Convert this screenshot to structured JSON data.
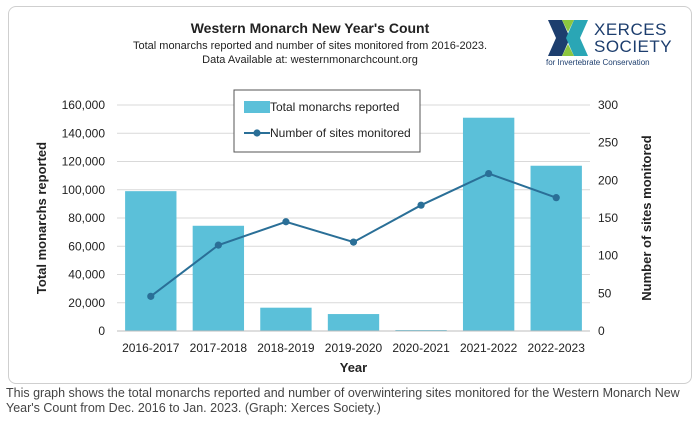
{
  "header": {
    "title": "Western Monarch New Year's Count",
    "subtitle_line1": "Total monarchs reported and number of sites monitored from 2016-2023.",
    "subtitle_line2": "Data Available at: westernmonarchcount.org"
  },
  "logo": {
    "word1": "XERCES",
    "word2": "SOCIETY",
    "tagline": "for Invertebrate Conservation",
    "colors": [
      "#1d3e6e",
      "#2aa6b5",
      "#8cc63f"
    ]
  },
  "caption": "This graph shows the total monarchs reported and number of overwintering sites monitored for the Western Monarch New Year's Count from Dec. 2016 to Jan. 2023. (Graph: Xerces Society.)",
  "chart_data": {
    "type": "bar",
    "title": "Western Monarch New Year's Count",
    "categories": [
      "2016-2017",
      "2017-2018",
      "2018-2019",
      "2019-2020",
      "2020-2021",
      "2021-2022",
      "2022-2023"
    ],
    "series": [
      {
        "name": "Total monarchs reported",
        "type": "bar",
        "axis": "left",
        "color": "#5bc0d9",
        "values": [
          99000,
          74500,
          16500,
          12000,
          700,
          151000,
          117000
        ]
      },
      {
        "name": "Number of sites monitored",
        "type": "line",
        "axis": "right",
        "color": "#2a6f97",
        "values": [
          46,
          114,
          145,
          118,
          167,
          209,
          177
        ]
      }
    ],
    "xlabel": "Year",
    "ylabel": "Total monarchs reported",
    "y2label": "Number of sites monitored",
    "ylim": [
      0,
      160000
    ],
    "y2lim": [
      0,
      300
    ],
    "yticks": [
      "0",
      "20,000",
      "40,000",
      "60,000",
      "80,000",
      "100,000",
      "120,000",
      "140,000",
      "160,000"
    ],
    "y2ticks": [
      "0",
      "50",
      "100",
      "150",
      "200",
      "250",
      "300"
    ],
    "grid": true,
    "legend_position": "top-center"
  }
}
